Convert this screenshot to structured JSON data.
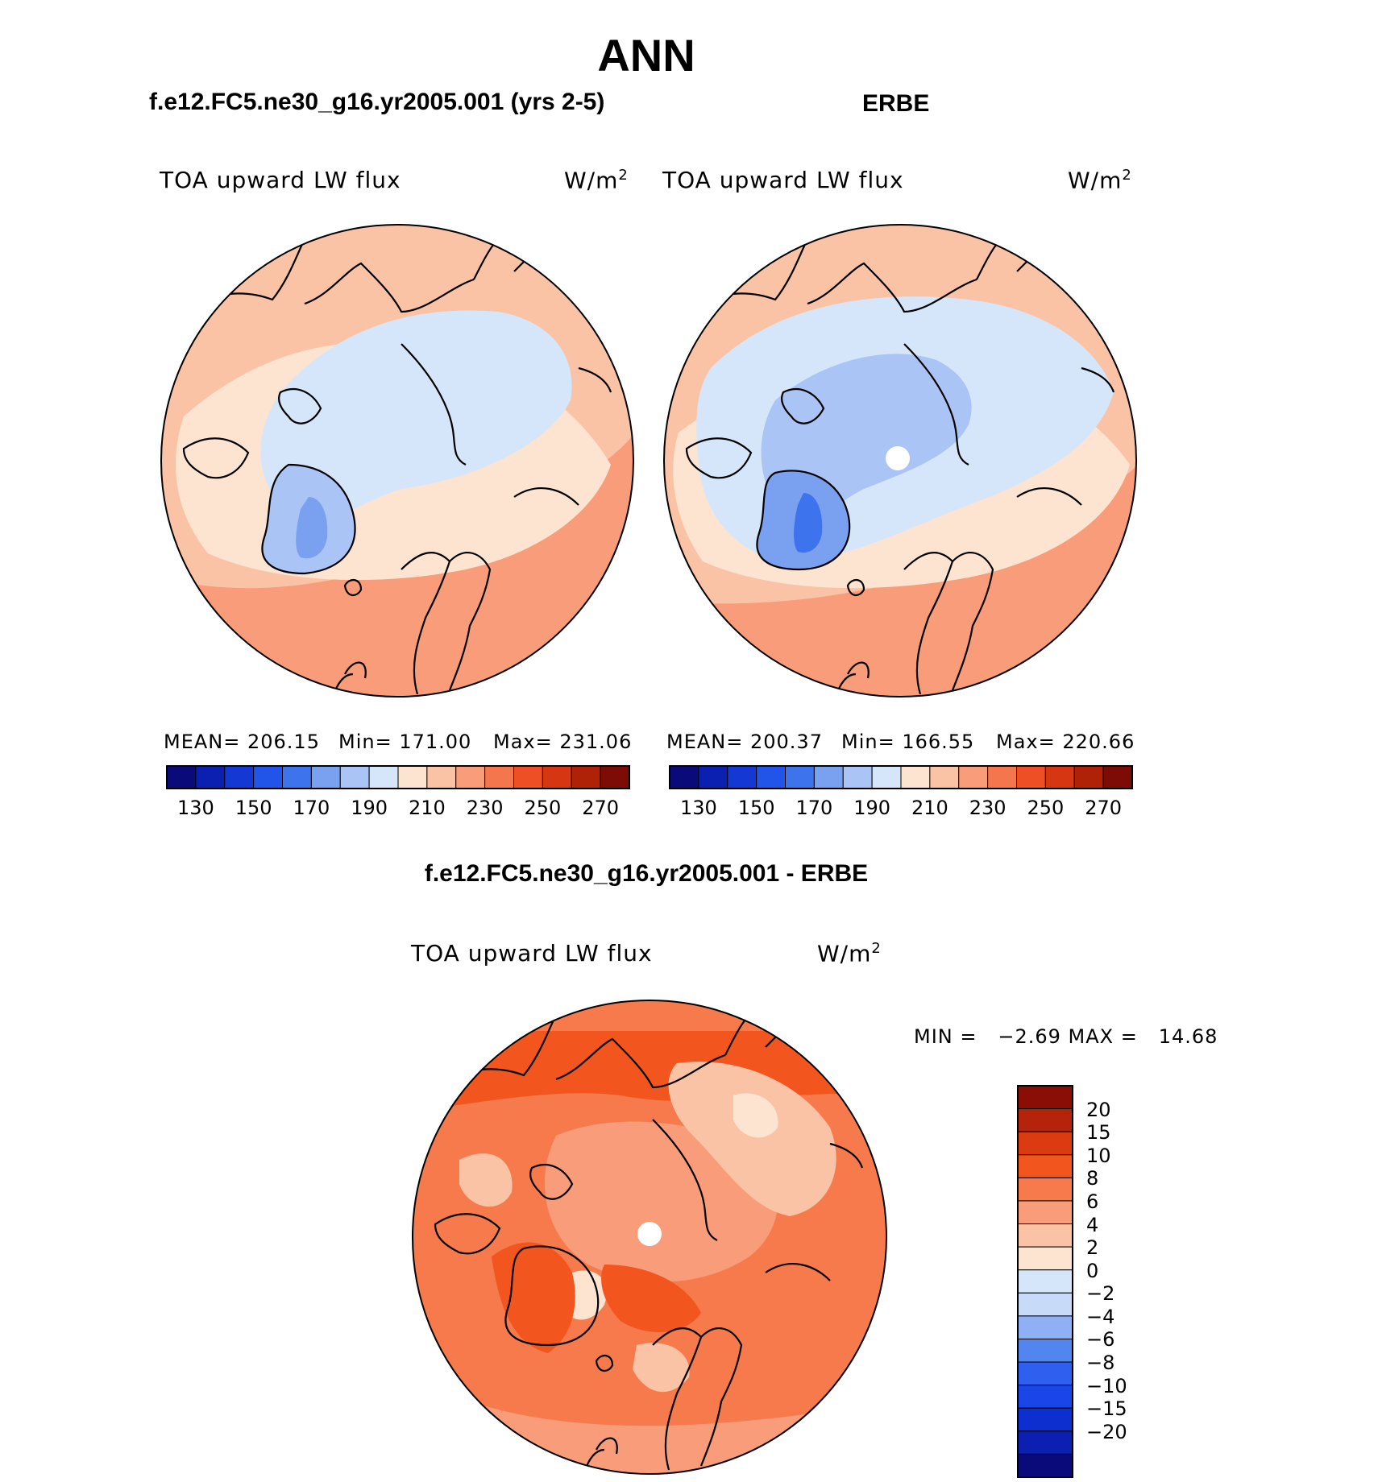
{
  "figure": {
    "season": "ANN",
    "left_title": "f.e12.FC5.ne30_g16.yr2005.001 (yrs 2-5)",
    "right_title": "ERBE",
    "diff_title": "f.e12.FC5.ne30_g16.yr2005.001 - ERBE"
  },
  "panels": {
    "left": {
      "variable": "TOA upward LW flux",
      "units": "W/m",
      "units_sup": "2",
      "mean": "MEAN= 206.15",
      "min": "Min= 171.00",
      "max": "Max= 231.06"
    },
    "right": {
      "variable": "TOA upward LW flux",
      "units": "W/m",
      "units_sup": "2",
      "mean": "MEAN= 200.37",
      "min": "Min= 166.55",
      "max": "Max= 220.66"
    },
    "diff": {
      "variable": "TOA upward LW flux",
      "units": "W/m",
      "units_sup": "2",
      "minmax": "MIN =   −2.69 MAX =   14.68"
    }
  },
  "abs_colorbar": {
    "colors": [
      "#0a0a7a",
      "#0b1fb0",
      "#1438d4",
      "#2155ea",
      "#3d74ee",
      "#7aa0f0",
      "#a9c4f5",
      "#d5e6fa",
      "#fde4d1",
      "#fbc3a6",
      "#f89c7a",
      "#f4764d",
      "#ee4f25",
      "#d63612",
      "#b02208",
      "#7c0c05"
    ],
    "labels": [
      "130",
      "150",
      "170",
      "190",
      "210",
      "230",
      "250",
      "270"
    ]
  },
  "diff_colorbar": {
    "colors": [
      "#0a0a7a",
      "#0b1fb0",
      "#0d2fd0",
      "#1a45e8",
      "#2e5fee",
      "#5385f0",
      "#90b0f5",
      "#c7daf8",
      "#d5e6fa",
      "#fde4d1",
      "#fbc3a6",
      "#f89c7a",
      "#f67a4b",
      "#f2551e",
      "#dc3a10",
      "#b4230a",
      "#8b0e06"
    ],
    "labels": [
      "20",
      "15",
      "10",
      "8",
      "6",
      "4",
      "2",
      "0",
      "−2",
      "−4",
      "−6",
      "−8",
      "−10",
      "−15",
      "−20"
    ]
  },
  "colors": {
    "land_outline": "#000000",
    "pole_hole": "#ffffff"
  }
}
